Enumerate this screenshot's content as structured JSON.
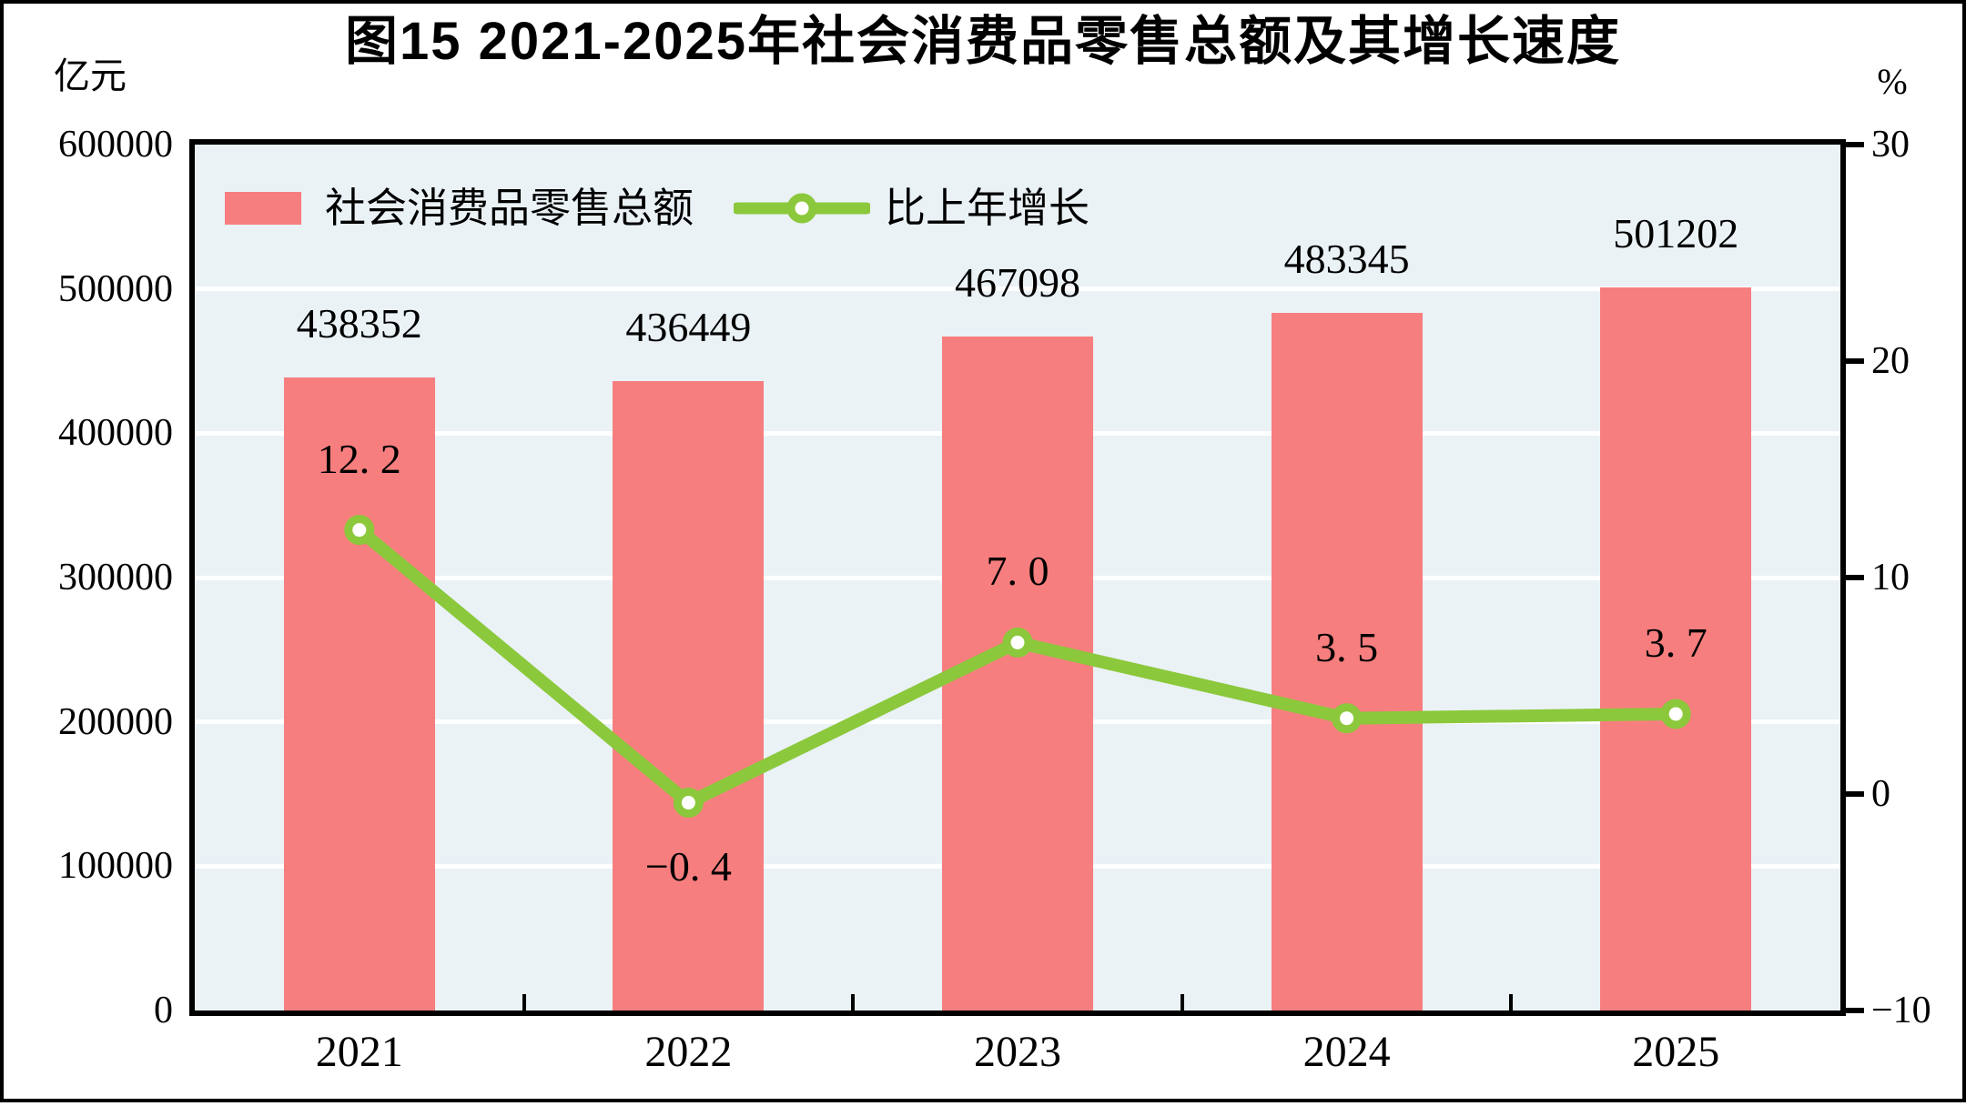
{
  "chart_data": {
    "type": "bar+line",
    "title": "图15  2021-2025年社会消费品零售总额及其增长速度",
    "categories": [
      "2021",
      "2022",
      "2023",
      "2024",
      "2025"
    ],
    "series": [
      {
        "name": "社会消费品零售总额",
        "type": "bar",
        "axis": "left",
        "color": "#f77e7e",
        "values": [
          438352,
          436449,
          467098,
          483345,
          501202
        ],
        "labels": [
          "438352",
          "436449",
          "467098",
          "483345",
          "501202"
        ]
      },
      {
        "name": "比上年增长",
        "type": "line",
        "axis": "right",
        "color": "#8cc83c",
        "marker": "open-circle",
        "values": [
          12.2,
          -0.4,
          7.0,
          3.5,
          3.7
        ],
        "labels": [
          "12. 2",
          "−0. 4",
          "7. 0",
          "3. 5",
          "3. 7"
        ],
        "label_position": [
          "above",
          "below",
          "above",
          "above",
          "above"
        ]
      }
    ],
    "left_axis": {
      "unit": "亿元",
      "min": 0,
      "max": 600000,
      "step": 100000,
      "ticks": [
        "600000",
        "500000",
        "400000",
        "300000",
        "200000",
        "100000",
        "0"
      ]
    },
    "right_axis": {
      "unit": "%",
      "min": -10,
      "max": 30,
      "step": 10,
      "ticks": [
        "30",
        "20",
        "10",
        "0",
        "−10"
      ]
    },
    "legend": {
      "bar_label": "社会消费品零售总额",
      "line_label": "比上年增长"
    },
    "style": {
      "plot_bg": "#eaf2f6",
      "grid_color": "#ffffff",
      "frame_color": "#000000",
      "text_color": "#000000"
    }
  }
}
